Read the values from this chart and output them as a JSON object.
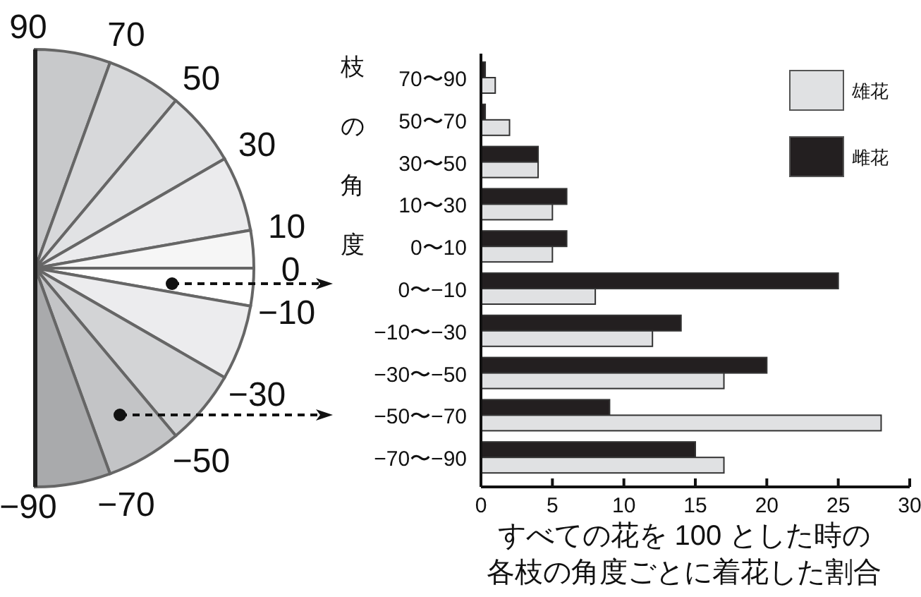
{
  "chart_data": [
    {
      "type": "other",
      "categories": [
        "90",
        "70",
        "50",
        "30",
        "10",
        "0",
        "−10",
        "−30",
        "−50",
        "−70",
        "−90"
      ],
      "colors": [
        "#c8c9cb",
        "#d7d8da",
        "#e1e2e4",
        "#ebebed",
        "#f6f6f6",
        "#ffffff",
        "#ececee",
        "#d3d4d6",
        "#c3c4c6",
        "#a9aaac"
      ]
    },
    {
      "type": "bar",
      "orientation": "horizontal",
      "ylabel": "枝の角度",
      "xlabel": "すべての花を 100 とした時の",
      "annotations": [
        "各枝の角度ごとに着花した割合"
      ],
      "categories": [
        "70〜90",
        "50〜70",
        "30〜50",
        "10〜30",
        "0〜10",
        "0〜−10",
        "−10〜−30",
        "−30〜−50",
        "−50〜−70",
        "−70〜−90"
      ],
      "series": [
        {
          "name": "雌花",
          "color": "#231f20",
          "values": [
            0.3,
            0.3,
            4,
            6,
            6,
            25,
            14,
            20,
            9,
            15
          ]
        },
        {
          "name": "雄花",
          "color": "#e0e1e3",
          "values": [
            1,
            2,
            4,
            5,
            5,
            8,
            12,
            17,
            28,
            17
          ]
        }
      ],
      "xlim": [
        0,
        30
      ],
      "xticks": [
        0,
        5,
        10,
        15,
        20,
        25,
        30
      ],
      "legend": "top right"
    }
  ]
}
